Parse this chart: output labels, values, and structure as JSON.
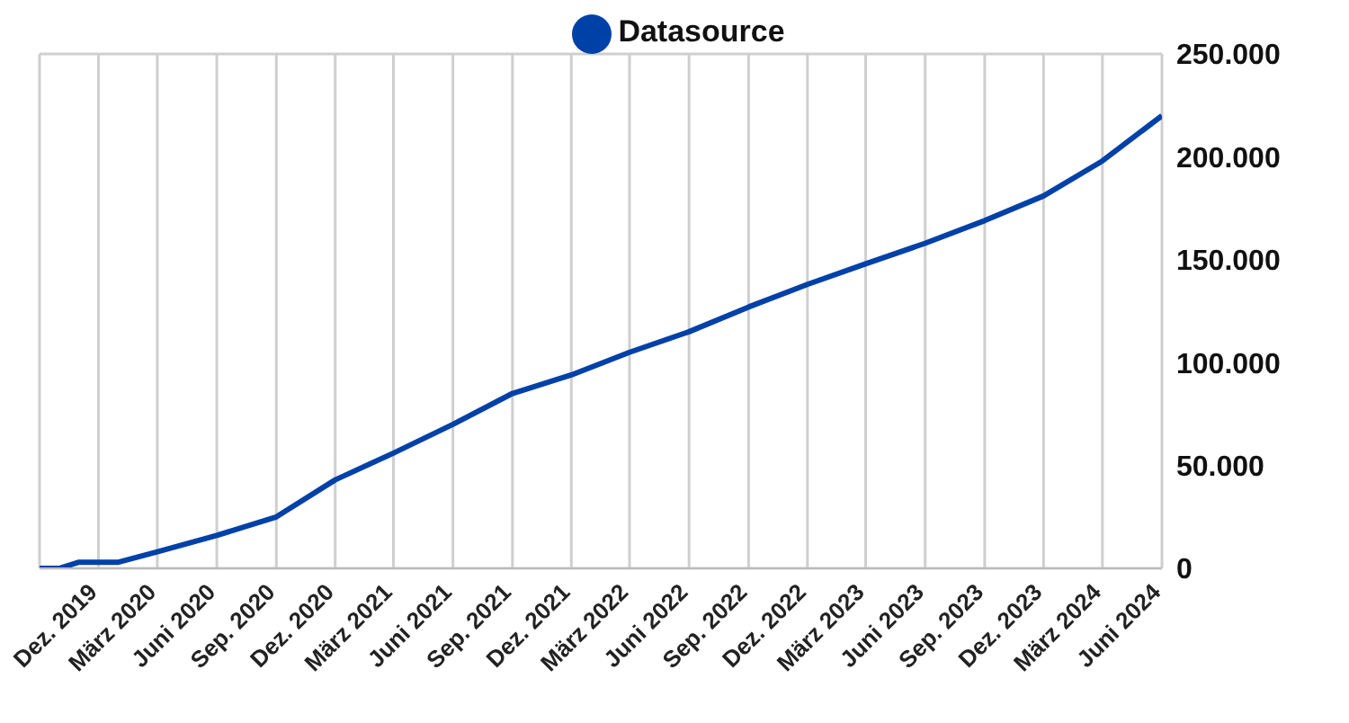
{
  "chart_data": {
    "type": "line",
    "legend": "top",
    "x": [
      "2019-09",
      "2019-10",
      "2019-11",
      "2019-12",
      "2020-01",
      "2020-03",
      "2020-06",
      "2020-09",
      "2020-12",
      "2021-03",
      "2021-06",
      "2021-09",
      "2021-12",
      "2022-03",
      "2022-06",
      "2022-09",
      "2022-12",
      "2023-03",
      "2023-06",
      "2023-09",
      "2023-12",
      "2024-03",
      "2024-06"
    ],
    "series": [
      {
        "name": "Datasource",
        "color": "#0041a8",
        "values": [
          0,
          0,
          3000,
          3000,
          3000,
          8000,
          16000,
          25000,
          43000,
          56000,
          70000,
          85000,
          94000,
          105000,
          115000,
          127000,
          138000,
          148000,
          158000,
          169000,
          181000,
          198000,
          220000
        ]
      }
    ],
    "xlim": [
      "2019-09",
      "2024-06"
    ],
    "xticks": [
      {
        "value": "2019-12",
        "label": "Dez. 2019"
      },
      {
        "value": "2020-03",
        "label": "März 2020"
      },
      {
        "value": "2020-06",
        "label": "Juni 2020"
      },
      {
        "value": "2020-09",
        "label": "Sep. 2020"
      },
      {
        "value": "2020-12",
        "label": "Dez. 2020"
      },
      {
        "value": "2021-03",
        "label": "März 2021"
      },
      {
        "value": "2021-06",
        "label": "Juni 2021"
      },
      {
        "value": "2021-09",
        "label": "Sep. 2021"
      },
      {
        "value": "2021-12",
        "label": "Dez. 2021"
      },
      {
        "value": "2022-03",
        "label": "März 2022"
      },
      {
        "value": "2022-06",
        "label": "Juni 2022"
      },
      {
        "value": "2022-09",
        "label": "Sep. 2022"
      },
      {
        "value": "2022-12",
        "label": "Dez. 2022"
      },
      {
        "value": "2023-03",
        "label": "März 2023"
      },
      {
        "value": "2023-06",
        "label": "Juni 2023"
      },
      {
        "value": "2023-09",
        "label": "Sep. 2023"
      },
      {
        "value": "2023-12",
        "label": "Dez. 2023"
      },
      {
        "value": "2024-03",
        "label": "März 2024"
      },
      {
        "value": "2024-06",
        "label": "Juni 2024"
      }
    ],
    "ylim": [
      0,
      250000
    ],
    "yticks": [
      0,
      {
        "value": 50000,
        "label": "50.000"
      },
      {
        "value": 100000,
        "label": "100.000"
      },
      {
        "value": 150000,
        "label": "150.000"
      },
      {
        "value": 200000,
        "label": "200.000"
      },
      {
        "value": 250000,
        "label": "250.000"
      }
    ],
    "grid": true,
    "marker": "none",
    "line_style": "solid"
  }
}
